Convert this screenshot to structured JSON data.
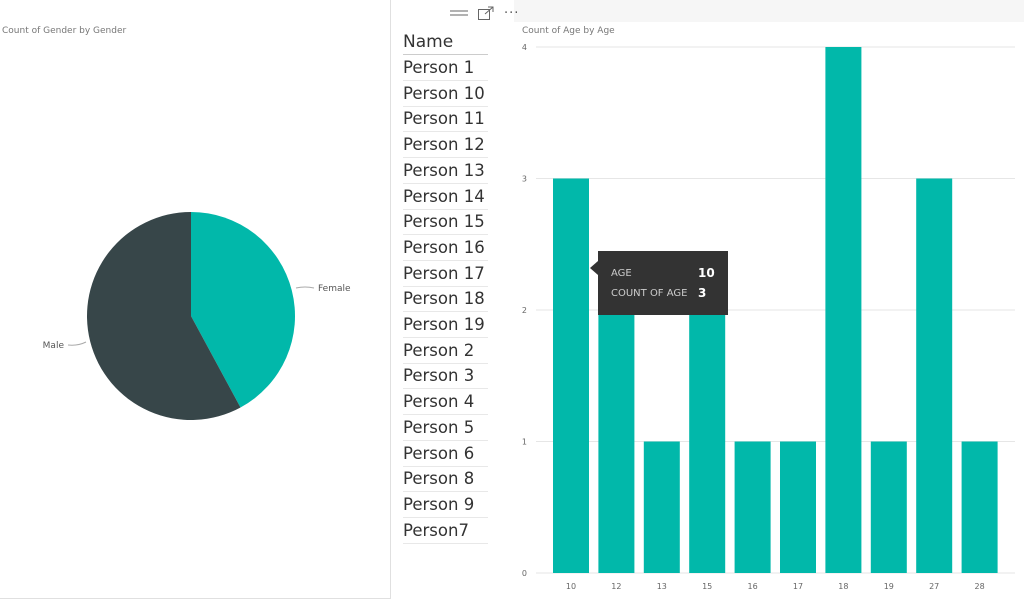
{
  "pie": {
    "title": "Count of Gender by Gender",
    "colors": {
      "Female": "#01b8aa",
      "Male": "#374649"
    }
  },
  "table": {
    "header": "Name",
    "rows": [
      "Person 1",
      "Person 10",
      "Person 11",
      "Person 12",
      "Person 13",
      "Person 14",
      "Person 15",
      "Person 16",
      "Person 17",
      "Person 18",
      "Person 19",
      "Person 2",
      "Person 3",
      "Person 4",
      "Person 5",
      "Person 6",
      "Person 8",
      "Person 9",
      "Person7"
    ]
  },
  "toolbar": {
    "icons": [
      "drag-handle-icon",
      "focus-mode-icon",
      "more-options-icon"
    ],
    "more_label": "···"
  },
  "bar": {
    "title": "Count of Age by Age",
    "color": "#01b8aa"
  },
  "tooltip": {
    "age_label": "AGE",
    "age_value": "10",
    "count_label": "COUNT OF AGE",
    "count_value": "3"
  },
  "chart_data": [
    {
      "type": "pie",
      "title": "Count of Gender by Gender",
      "categories": [
        "Female",
        "Male"
      ],
      "values": [
        8,
        11
      ]
    },
    {
      "type": "bar",
      "title": "Count of Age by Age",
      "categories": [
        "10",
        "12",
        "13",
        "15",
        "16",
        "17",
        "18",
        "19",
        "27",
        "28"
      ],
      "values": [
        3,
        2,
        1,
        2,
        1,
        1,
        4,
        1,
        3,
        1
      ],
      "xlabel": "",
      "ylabel": "",
      "ylim": [
        0,
        4
      ],
      "yticks": [
        "0",
        "1",
        "2",
        "3",
        "4"
      ],
      "grid": true
    }
  ]
}
